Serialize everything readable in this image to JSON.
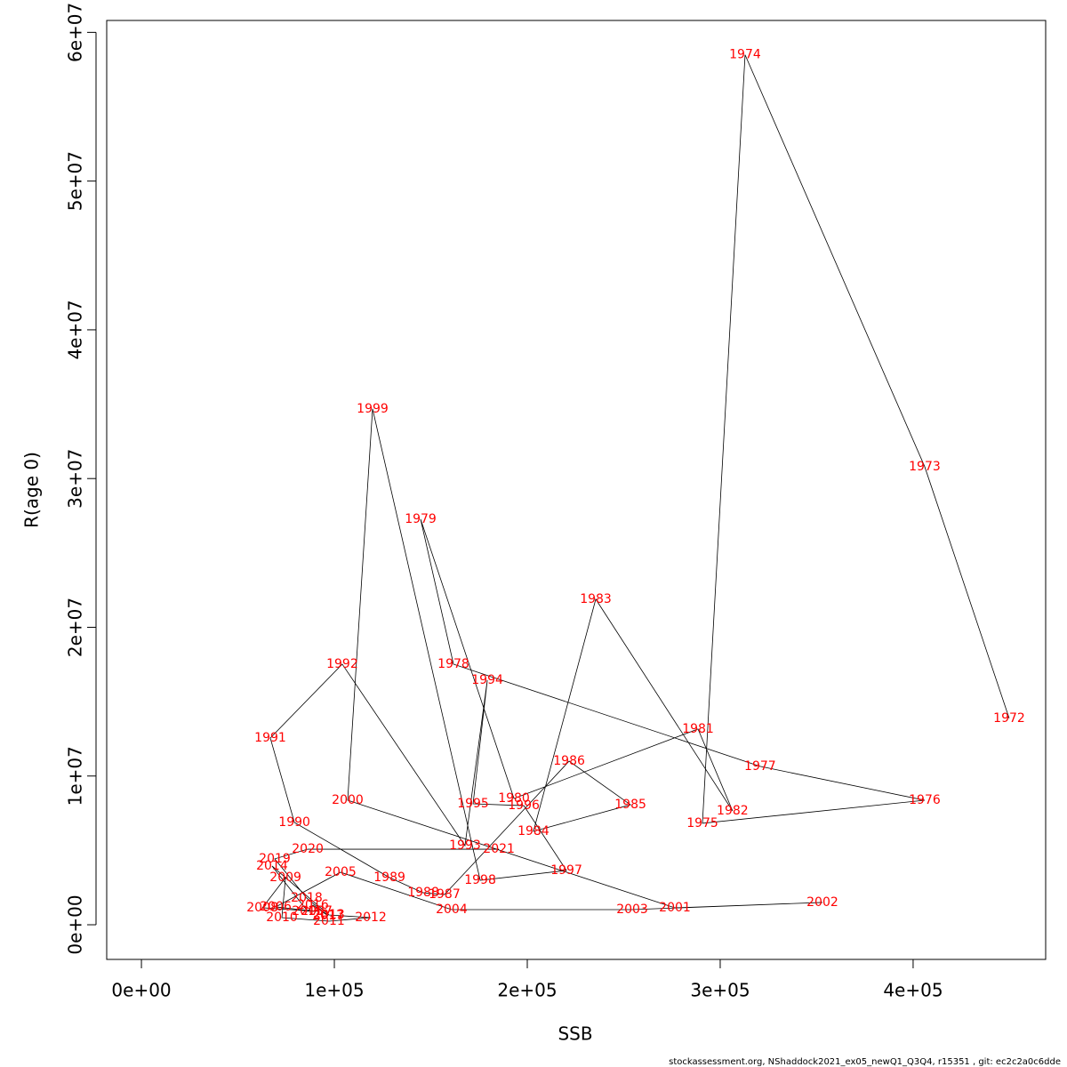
{
  "chart_data": {
    "type": "line",
    "xlabel": "SSB",
    "ylabel": "R(age 0)",
    "footer": "stockassessment.org, NShaddock2021_ex05_newQ1_Q3Q4, r15351 , git: ec2c2a0c6dde",
    "x": [
      449800,
      406000,
      312900,
      290800,
      406000,
      320700,
      161750,
      144700,
      193100,
      288500,
      306400,
      235500,
      203200,
      253500,
      221700,
      157100,
      146100,
      128600,
      79300,
      66800,
      104100,
      167700,
      179300,
      171900,
      198200,
      220300,
      175600,
      119800,
      106900,
      276500,
      353000,
      254400,
      160800,
      103200,
      69600,
      90800,
      62700,
      74700,
      72800,
      97200,
      118900,
      97200,
      67700,
      86200,
      88900,
      96800,
      85700,
      69100,
      86200,
      185300
    ],
    "series": [
      {
        "line_color": "#000000",
        "label_color": "#ff0000",
        "values": [
          13880000,
          30800000,
          58490000,
          6820000,
          8370000,
          10650000,
          17520000,
          27270000,
          8490000,
          13160000,
          7660000,
          21890000,
          6280000,
          8070000,
          11000000,
          2030000,
          2150000,
          3170000,
          6880000,
          12560000,
          17520000,
          5320000,
          16450000,
          8130000,
          8010000,
          3650000,
          2990000,
          34690000,
          8370000,
          1140000,
          1500000,
          1020000,
          1020000,
          3530000,
          1200000,
          900000,
          1140000,
          3170000,
          480000,
          240000,
          480000,
          660000,
          3950000,
          900000,
          1320000,
          600000,
          1790000,
          4430000,
          5080000,
          5080000
        ],
        "point_labels": [
          "1972",
          "1973",
          "1974",
          "1975",
          "1976",
          "1977",
          "1978",
          "1979",
          "1980",
          "1981",
          "1982",
          "1983",
          "1984",
          "1985",
          "1986",
          "1987",
          "1988",
          "1989",
          "1990",
          "1991",
          "1992",
          "1993",
          "1994",
          "1995",
          "1996",
          "1997",
          "1998",
          "1999",
          "2000",
          "2001",
          "2002",
          "2003",
          "2004",
          "2005",
          "2006",
          "2007",
          "2008",
          "2009",
          "2010",
          "2011",
          "2012",
          "2013",
          "2014",
          "2015",
          "2016",
          "2017",
          "2018",
          "2019",
          "2020",
          "2021"
        ]
      }
    ],
    "xlim": [
      -18000,
      468700
    ],
    "ylim": [
      -2330000,
      60800000
    ],
    "xticks": [
      {
        "value": 0,
        "label": "0e+00"
      },
      {
        "value": 100000,
        "label": "1e+05"
      },
      {
        "value": 200000,
        "label": "2e+05"
      },
      {
        "value": 300000,
        "label": "3e+05"
      },
      {
        "value": 400000,
        "label": "4e+05"
      }
    ],
    "yticks": [
      {
        "value": 0,
        "label": "0e+00"
      },
      {
        "value": 10000000,
        "label": "1e+07"
      },
      {
        "value": 20000000,
        "label": "2e+07"
      },
      {
        "value": 30000000,
        "label": "3e+07"
      },
      {
        "value": 40000000,
        "label": "4e+07"
      },
      {
        "value": 50000000,
        "label": "5e+07"
      },
      {
        "value": 60000000,
        "label": "6e+07"
      }
    ]
  }
}
